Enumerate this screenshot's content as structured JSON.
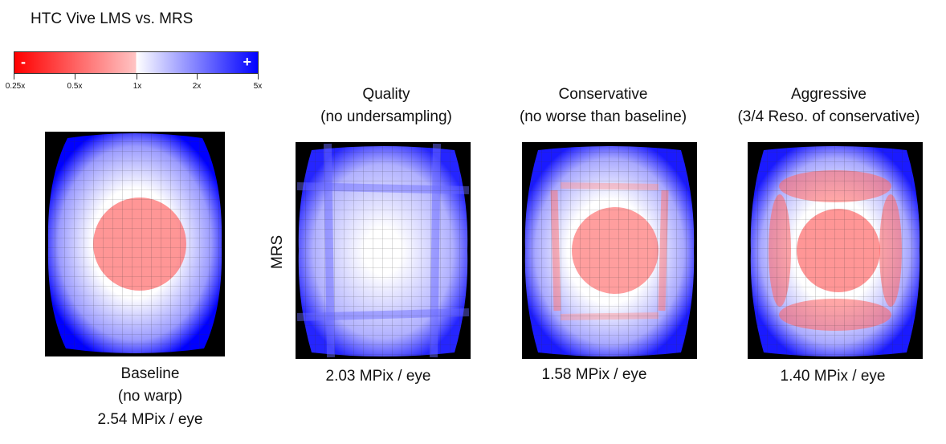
{
  "header": {
    "title": "HTC Vive LMS vs. MRS"
  },
  "legend": {
    "minus_sign": "-",
    "plus_sign": "+",
    "ticks": [
      "0.25x",
      "0.5x",
      "1x",
      "2x",
      "5x"
    ],
    "colors": {
      "low": "#ff0000",
      "mid": "#ffffff",
      "high": "#0000ff"
    }
  },
  "row_label": "MRS",
  "panels": [
    {
      "title": "",
      "subtitle": "",
      "caption_lines": [
        "Baseline",
        "(no warp)",
        "2.54 MPix / eye"
      ]
    },
    {
      "title": "Quality",
      "subtitle": "(no undersampling)",
      "caption_lines": [
        "2.03 MPix / eye"
      ]
    },
    {
      "title": "Conservative",
      "subtitle": "(no worse than baseline)",
      "caption_lines": [
        "1.58 MPix / eye"
      ]
    },
    {
      "title": "Aggressive",
      "subtitle": "(3/4 Reso. of conservative)",
      "caption_lines": [
        "1.40 MPix / eye"
      ]
    }
  ]
}
